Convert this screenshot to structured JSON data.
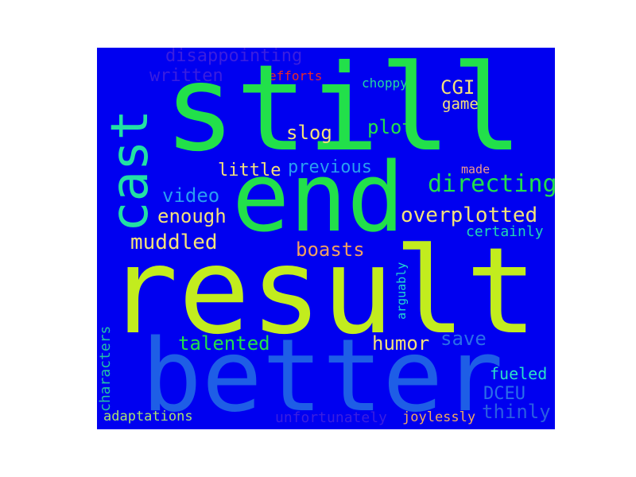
{
  "background": "#0000f0",
  "words": [
    {
      "key": "still",
      "text": "still",
      "color": "#22e04a"
    },
    {
      "key": "result",
      "text": "result",
      "color": "#c2ec1e"
    },
    {
      "key": "better",
      "text": "better",
      "color": "#1e5ee6"
    },
    {
      "key": "end",
      "text": "end",
      "color": "#22e04a"
    },
    {
      "key": "cast",
      "text": "cast",
      "color": "#22e0a4"
    },
    {
      "key": "disappointing",
      "text": "disappointing",
      "color": "#3a1ee0"
    },
    {
      "key": "written",
      "text": "written",
      "color": "#3a1ee0"
    },
    {
      "key": "efforts",
      "text": "efforts",
      "color": "#e82a2a"
    },
    {
      "key": "choppy",
      "text": "choppy",
      "color": "#22d8a0"
    },
    {
      "key": "CGI",
      "text": "CGI",
      "color": "#f4e27a"
    },
    {
      "key": "game",
      "text": "game",
      "color": "#f4e27a"
    },
    {
      "key": "plot",
      "text": "plot",
      "color": "#22e04a"
    },
    {
      "key": "slog",
      "text": "slog",
      "color": "#f4e27a"
    },
    {
      "key": "previous",
      "text": "previous",
      "color": "#2a9ef0"
    },
    {
      "key": "little",
      "text": "little",
      "color": "#f4e27a"
    },
    {
      "key": "made",
      "text": "made",
      "color": "#ee9a8a"
    },
    {
      "key": "directing",
      "text": "directing",
      "color": "#22e04a"
    },
    {
      "key": "video",
      "text": "video",
      "color": "#2a9ef0"
    },
    {
      "key": "enough",
      "text": "enough",
      "color": "#f4e27a"
    },
    {
      "key": "overplotted",
      "text": "overplotted",
      "color": "#f4e27a"
    },
    {
      "key": "certainly",
      "text": "certainly",
      "color": "#22d8b0"
    },
    {
      "key": "muddled",
      "text": "muddled",
      "color": "#f4e27a"
    },
    {
      "key": "boasts",
      "text": "boasts",
      "color": "#f0a060"
    },
    {
      "key": "arguably",
      "text": "arguably",
      "color": "#22d8d0"
    },
    {
      "key": "talented",
      "text": "talented",
      "color": "#22e04a"
    },
    {
      "key": "humor",
      "text": "humor",
      "color": "#f4e27a"
    },
    {
      "key": "save",
      "text": "save",
      "color": "#2a6ee8"
    },
    {
      "key": "characters",
      "text": "characters",
      "color": "#22c0a8"
    },
    {
      "key": "fueled",
      "text": "fueled",
      "color": "#2ae0c8"
    },
    {
      "key": "DCEU",
      "text": "DCEU",
      "color": "#2a6ee8"
    },
    {
      "key": "thinly",
      "text": "thinly",
      "color": "#2a5ee0"
    },
    {
      "key": "adaptations",
      "text": "adaptations",
      "color": "#a8e070"
    },
    {
      "key": "unfortunately",
      "text": "unfortunately",
      "color": "#3a1ee0"
    },
    {
      "key": "joylessly",
      "text": "joylessly",
      "color": "#f0a860"
    }
  ]
}
